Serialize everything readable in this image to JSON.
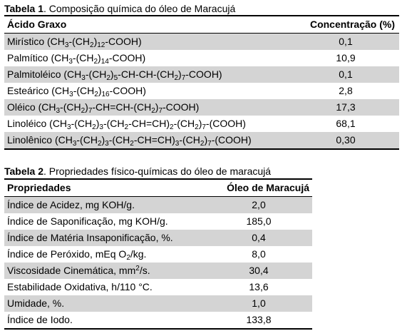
{
  "table1": {
    "caption_label": "Tabela 1",
    "caption_text": ". Composição química do óleo de Maracujá",
    "headers": [
      "Ácido Graxo",
      "Concentração (%)"
    ],
    "rows": [
      {
        "name": "Mirístico",
        "formula": "(CH3-(CH2)12-COOH)",
        "value": "0,1"
      },
      {
        "name": "Palmítico",
        "formula": "(CH3-(CH2)14-COOH)",
        "value": "10,9"
      },
      {
        "name": "Palmitoléico",
        "formula": "(CH3-(CH2)5-CH-CH-(CH2)7-COOH)",
        "value": "0,1"
      },
      {
        "name": "Esteárico",
        "formula": "(CH3-(CH2)16-COOH)",
        "value": "2,8"
      },
      {
        "name": "Oléico",
        "formula": "(CH3-(CH2)7-CH=CH-(CH2)7-COOH)",
        "value": "17,3"
      },
      {
        "name": "Linoléico",
        "formula": "(CH3-(CH2)3-(CH2-CH=CH)2-(CH2)7-(COOH)",
        "value": "68,1"
      },
      {
        "name": "Linolênico",
        "formula": "(CH3-(CH2)3-(CH2-CH=CH)3-(CH2)7-(COOH)",
        "value": "0,30"
      }
    ]
  },
  "table2": {
    "caption_label": "Tabela 2",
    "caption_text": ". Propriedades físico-químicas do óleo de maracujá",
    "headers": [
      "Propriedades",
      "Óleo de Maracujá"
    ],
    "rows": [
      {
        "label": "Índice de Acidez, mg KOH/g.",
        "value": "2,0"
      },
      {
        "label": "Índice de Saponificação, mg KOH/g.",
        "value": "185,0"
      },
      {
        "label": "Índice de Matéria Insaponificação, %.",
        "value": "0,4"
      },
      {
        "label": "Índice de Peróxido, mEq O2/kg.",
        "value": "8,0"
      },
      {
        "label": "Viscosidade Cinemática, mm2/s.",
        "value": "30,4"
      },
      {
        "label": "Estabilidade Oxidativa, h/110 °C.",
        "value": "13,6"
      },
      {
        "label": "Umidade, %.",
        "value": "1,0"
      },
      {
        "label": "Índice de Iodo.",
        "value": "133,8"
      }
    ]
  },
  "colors": {
    "row_shade": "#d4d4d4",
    "rule": "#000000"
  }
}
